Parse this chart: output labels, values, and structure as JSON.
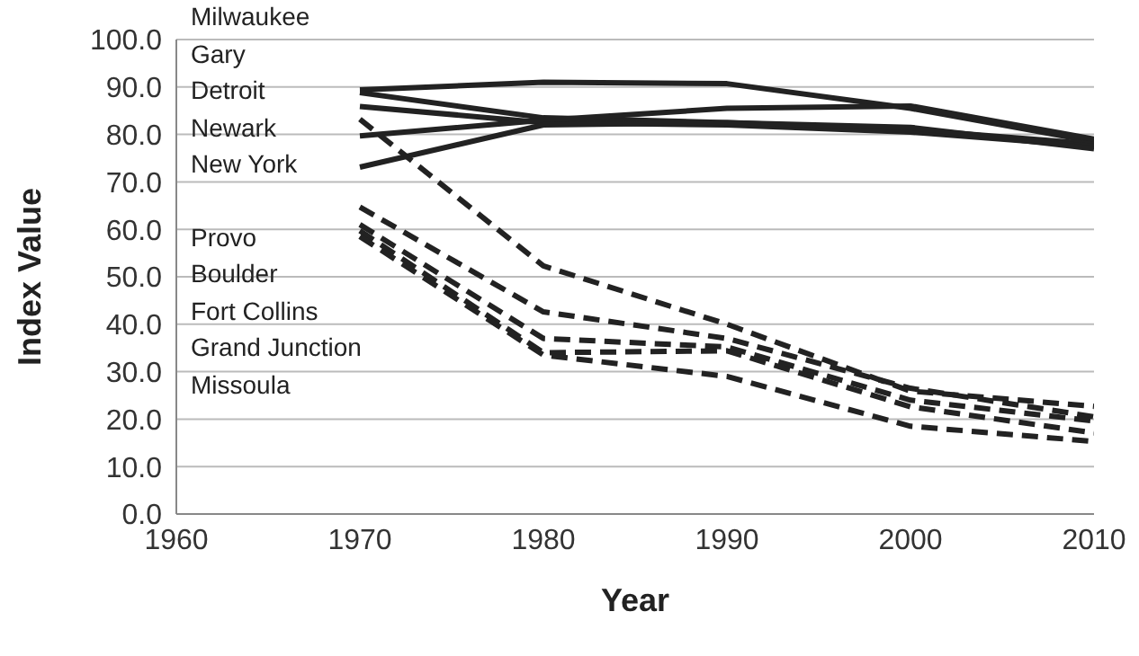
{
  "chart_data": {
    "type": "line",
    "xlabel": "Year",
    "ylabel": "Index Value",
    "x": [
      1970,
      1980,
      1990,
      2000,
      2010
    ],
    "annotations": [
      "Milwaukee",
      "Gary",
      "Detroit",
      "Newark",
      "New York",
      "Provo",
      "Boulder",
      "Fort Collins",
      "Grand Junction",
      "Missoula"
    ],
    "series": [
      {
        "color": "#222222",
        "line_style": "solid",
        "values": [
          89.4,
          91.0,
          90.7,
          85.5,
          78.5
        ]
      },
      {
        "color": "#222222",
        "line_style": "solid",
        "values": [
          88.8,
          83.5,
          82.5,
          81.0,
          78.0
        ]
      },
      {
        "color": "#222222",
        "line_style": "solid",
        "values": [
          85.9,
          82.5,
          82.0,
          80.5,
          77.5
        ]
      },
      {
        "color": "#222222",
        "line_style": "solid",
        "values": [
          79.7,
          83.0,
          85.5,
          86.0,
          79.0
        ]
      },
      {
        "color": "#222222",
        "line_style": "solid",
        "values": [
          73.1,
          82.0,
          82.5,
          81.5,
          77.0
        ]
      },
      {
        "color": "#222222",
        "line_style": "dashed",
        "values": [
          83.2,
          52.3,
          40.0,
          25.9,
          22.7
        ]
      },
      {
        "color": "#222222",
        "line_style": "dashed",
        "values": [
          64.7,
          42.6,
          37.0,
          26.5,
          20.5
        ]
      },
      {
        "color": "#222222",
        "line_style": "dashed",
        "values": [
          61.0,
          37.0,
          35.2,
          24.0,
          19.6
        ]
      },
      {
        "color": "#222222",
        "line_style": "dashed",
        "values": [
          59.7,
          34.0,
          34.4,
          22.6,
          17.1
        ]
      },
      {
        "color": "#222222",
        "line_style": "dashed",
        "values": [
          58.5,
          33.5,
          29.0,
          18.5,
          15.3
        ]
      }
    ],
    "xlim": [
      1960,
      2010
    ],
    "xticks": [
      1960,
      1970,
      1980,
      1990,
      2000,
      2010
    ],
    "ylim": [
      0,
      100
    ],
    "yticks": [
      {
        "value": 0,
        "label": "0.0"
      },
      {
        "value": 10,
        "label": "10.0"
      },
      {
        "value": 20,
        "label": "20.0"
      },
      {
        "value": 30,
        "label": "30.0"
      },
      {
        "value": 40,
        "label": "40.0"
      },
      {
        "value": 50,
        "label": "50.0"
      },
      {
        "value": 60,
        "label": "60.0"
      },
      {
        "value": 70,
        "label": "70.0"
      },
      {
        "value": 80,
        "label": "80.0"
      },
      {
        "value": 90,
        "label": "90.0"
      },
      {
        "value": 100,
        "label": "100.0"
      }
    ],
    "grid": "y",
    "marker": "none"
  }
}
